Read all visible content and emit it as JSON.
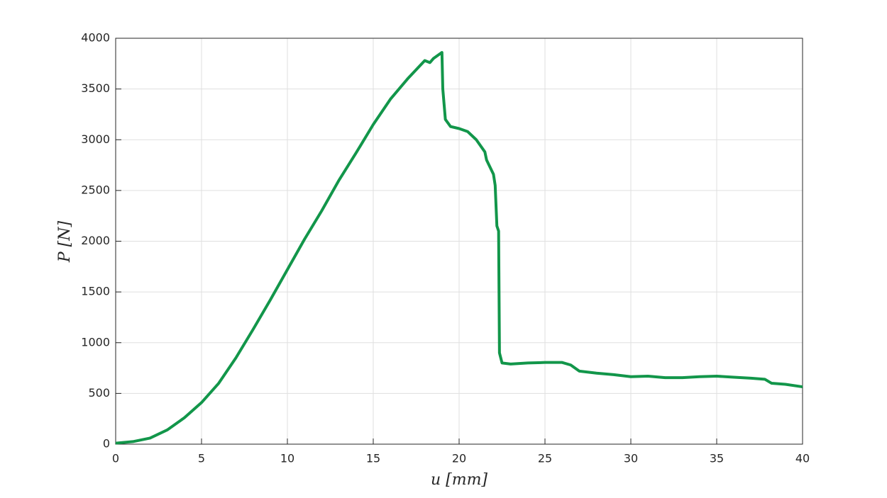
{
  "chart_data": {
    "type": "line",
    "x_label": "u [mm]",
    "y_label": "P [N]",
    "x": [
      0,
      1,
      2,
      3,
      4,
      5,
      6,
      7,
      8,
      9,
      10,
      11,
      12,
      13,
      14,
      15,
      16,
      17,
      18,
      18.3,
      18.5,
      19,
      19.05,
      19.2,
      19.5,
      20,
      20.5,
      21,
      21.5,
      21.6,
      22,
      22.1,
      22.2,
      22.3,
      22.35,
      22.5,
      23,
      24,
      25,
      26,
      26.5,
      27,
      28,
      29,
      30,
      31,
      32,
      33,
      34,
      35,
      36,
      37,
      37.8,
      38.2,
      39,
      40
    ],
    "series": [
      {
        "name": "P",
        "color": "#12964a",
        "values": [
          10,
          25,
          60,
          140,
          260,
          410,
          600,
          850,
          1130,
          1420,
          1720,
          2020,
          2300,
          2600,
          2870,
          3150,
          3400,
          3600,
          3780,
          3760,
          3800,
          3860,
          3500,
          3200,
          3130,
          3110,
          3080,
          3000,
          2880,
          2800,
          2660,
          2550,
          2150,
          2100,
          900,
          800,
          790,
          800,
          805,
          805,
          780,
          720,
          700,
          685,
          665,
          670,
          655,
          655,
          665,
          670,
          660,
          650,
          640,
          600,
          590,
          565
        ]
      }
    ],
    "xlim": [
      0,
      40
    ],
    "xticks": [
      0,
      5,
      10,
      15,
      20,
      25,
      30,
      35,
      40
    ],
    "ylim": [
      0,
      4000
    ],
    "yticks": [
      0,
      500,
      1000,
      1500,
      2000,
      2500,
      3000,
      3500,
      4000
    ],
    "grid": true
  }
}
